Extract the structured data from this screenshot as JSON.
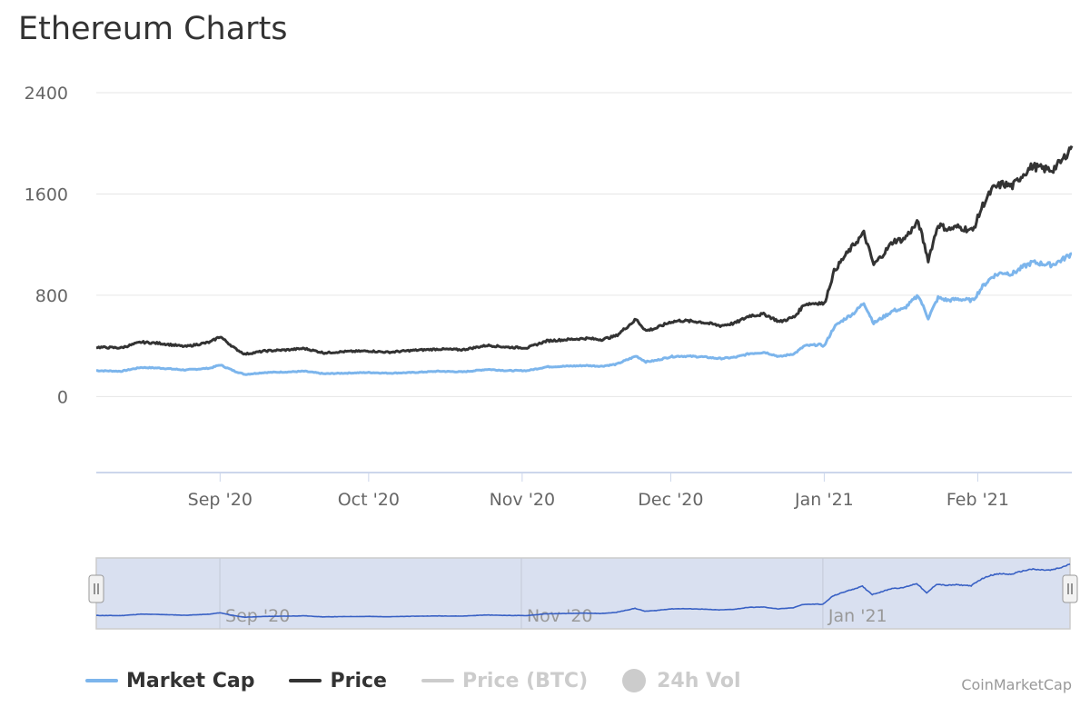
{
  "title": "Ethereum Charts",
  "credit": "CoinMarketCap",
  "legend": [
    {
      "label": "Market Cap",
      "color": "#7cb5ec",
      "active": true,
      "marker": "line"
    },
    {
      "label": "Price",
      "color": "#333333",
      "active": true,
      "marker": "line"
    },
    {
      "label": "Price (BTC)",
      "color": "#cccccc",
      "active": false,
      "marker": "line"
    },
    {
      "label": "24h Vol",
      "color": "#cccccc",
      "active": false,
      "marker": "circle"
    }
  ],
  "chart_data": {
    "type": "line",
    "y_ticks": [
      0,
      800,
      1600,
      2400
    ],
    "ylim": [
      -600,
      2400
    ],
    "x_ticks": [
      {
        "label": "Sep '20",
        "date": "2020-09-01"
      },
      {
        "label": "Oct '20",
        "date": "2020-10-01"
      },
      {
        "label": "Nov '20",
        "date": "2020-11-01"
      },
      {
        "label": "Dec '20",
        "date": "2020-12-01"
      },
      {
        "label": "Jan '21",
        "date": "2021-01-01"
      },
      {
        "label": "Feb '21",
        "date": "2021-02-01"
      }
    ],
    "x_range": [
      "2020-08-07",
      "2021-02-20"
    ],
    "grid": true,
    "legend_position": "bottom-left",
    "series": [
      {
        "name": "Price",
        "color": "#333333",
        "points": [
          [
            "2020-08-07",
            390
          ],
          [
            "2020-08-12",
            385
          ],
          [
            "2020-08-16",
            430
          ],
          [
            "2020-08-20",
            420
          ],
          [
            "2020-08-25",
            395
          ],
          [
            "2020-08-30",
            430
          ],
          [
            "2020-09-01",
            475
          ],
          [
            "2020-09-04",
            380
          ],
          [
            "2020-09-06",
            335
          ],
          [
            "2020-09-10",
            360
          ],
          [
            "2020-09-15",
            370
          ],
          [
            "2020-09-18",
            380
          ],
          [
            "2020-09-22",
            345
          ],
          [
            "2020-09-26",
            355
          ],
          [
            "2020-10-01",
            360
          ],
          [
            "2020-10-05",
            350
          ],
          [
            "2020-10-10",
            365
          ],
          [
            "2020-10-15",
            375
          ],
          [
            "2020-10-20",
            370
          ],
          [
            "2020-10-25",
            405
          ],
          [
            "2020-10-29",
            390
          ],
          [
            "2020-11-02",
            385
          ],
          [
            "2020-11-06",
            440
          ],
          [
            "2020-11-10",
            450
          ],
          [
            "2020-11-14",
            460
          ],
          [
            "2020-11-17",
            450
          ],
          [
            "2020-11-20",
            480
          ],
          [
            "2020-11-24",
            610
          ],
          [
            "2020-11-26",
            520
          ],
          [
            "2020-11-28",
            540
          ],
          [
            "2020-12-01",
            590
          ],
          [
            "2020-12-03",
            600
          ],
          [
            "2020-12-07",
            590
          ],
          [
            "2020-12-11",
            560
          ],
          [
            "2020-12-14",
            580
          ],
          [
            "2020-12-17",
            640
          ],
          [
            "2020-12-20",
            650
          ],
          [
            "2020-12-23",
            590
          ],
          [
            "2020-12-26",
            630
          ],
          [
            "2020-12-28",
            730
          ],
          [
            "2020-12-31",
            740
          ],
          [
            "2021-01-01",
            730
          ],
          [
            "2021-01-03",
            990
          ],
          [
            "2021-01-05",
            1100
          ],
          [
            "2021-01-07",
            1200
          ],
          [
            "2021-01-09",
            1290
          ],
          [
            "2021-01-11",
            1040
          ],
          [
            "2021-01-13",
            1130
          ],
          [
            "2021-01-15",
            1230
          ],
          [
            "2021-01-17",
            1240
          ],
          [
            "2021-01-20",
            1380
          ],
          [
            "2021-01-22",
            1080
          ],
          [
            "2021-01-24",
            1360
          ],
          [
            "2021-01-26",
            1320
          ],
          [
            "2021-01-28",
            1340
          ],
          [
            "2021-01-31",
            1310
          ],
          [
            "2021-02-02",
            1510
          ],
          [
            "2021-02-04",
            1640
          ],
          [
            "2021-02-06",
            1680
          ],
          [
            "2021-02-08",
            1660
          ],
          [
            "2021-02-10",
            1750
          ],
          [
            "2021-02-12",
            1820
          ],
          [
            "2021-02-14",
            1800
          ],
          [
            "2021-02-16",
            1790
          ],
          [
            "2021-02-18",
            1860
          ],
          [
            "2021-02-20",
            1980
          ]
        ]
      },
      {
        "name": "Market Cap",
        "color": "#7cb5ec",
        "points": [
          [
            "2020-08-07",
            205
          ],
          [
            "2020-08-12",
            200
          ],
          [
            "2020-08-16",
            230
          ],
          [
            "2020-08-20",
            225
          ],
          [
            "2020-08-25",
            210
          ],
          [
            "2020-08-30",
            225
          ],
          [
            "2020-09-01",
            250
          ],
          [
            "2020-09-04",
            200
          ],
          [
            "2020-09-06",
            175
          ],
          [
            "2020-09-10",
            190
          ],
          [
            "2020-09-15",
            195
          ],
          [
            "2020-09-18",
            200
          ],
          [
            "2020-09-22",
            180
          ],
          [
            "2020-09-26",
            185
          ],
          [
            "2020-10-01",
            190
          ],
          [
            "2020-10-05",
            185
          ],
          [
            "2020-10-10",
            190
          ],
          [
            "2020-10-15",
            200
          ],
          [
            "2020-10-20",
            195
          ],
          [
            "2020-10-25",
            215
          ],
          [
            "2020-10-29",
            205
          ],
          [
            "2020-11-02",
            205
          ],
          [
            "2020-11-06",
            235
          ],
          [
            "2020-11-10",
            240
          ],
          [
            "2020-11-14",
            245
          ],
          [
            "2020-11-17",
            240
          ],
          [
            "2020-11-20",
            255
          ],
          [
            "2020-11-24",
            320
          ],
          [
            "2020-11-26",
            275
          ],
          [
            "2020-11-28",
            285
          ],
          [
            "2020-12-01",
            315
          ],
          [
            "2020-12-03",
            320
          ],
          [
            "2020-12-07",
            315
          ],
          [
            "2020-12-11",
            300
          ],
          [
            "2020-12-14",
            310
          ],
          [
            "2020-12-17",
            340
          ],
          [
            "2020-12-20",
            350
          ],
          [
            "2020-12-23",
            315
          ],
          [
            "2020-12-26",
            340
          ],
          [
            "2020-12-28",
            400
          ],
          [
            "2020-12-31",
            410
          ],
          [
            "2021-01-01",
            400
          ],
          [
            "2021-01-03",
            550
          ],
          [
            "2021-01-05",
            610
          ],
          [
            "2021-01-07",
            660
          ],
          [
            "2021-01-09",
            740
          ],
          [
            "2021-01-11",
            580
          ],
          [
            "2021-01-13",
            630
          ],
          [
            "2021-01-15",
            680
          ],
          [
            "2021-01-17",
            690
          ],
          [
            "2021-01-20",
            800
          ],
          [
            "2021-01-22",
            620
          ],
          [
            "2021-01-24",
            780
          ],
          [
            "2021-01-26",
            760
          ],
          [
            "2021-01-28",
            770
          ],
          [
            "2021-01-31",
            760
          ],
          [
            "2021-02-02",
            870
          ],
          [
            "2021-02-04",
            950
          ],
          [
            "2021-02-06",
            980
          ],
          [
            "2021-02-08",
            970
          ],
          [
            "2021-02-10",
            1020
          ],
          [
            "2021-02-12",
            1060
          ],
          [
            "2021-02-14",
            1050
          ],
          [
            "2021-02-16",
            1040
          ],
          [
            "2021-02-18",
            1080
          ],
          [
            "2021-02-20",
            1130
          ]
        ]
      }
    ],
    "navigator": {
      "x_ticks": [
        {
          "label": "Sep '20",
          "date": "2020-09-01"
        },
        {
          "label": "Nov '20",
          "date": "2020-11-01"
        },
        {
          "label": "Jan '21",
          "date": "2021-01-01"
        }
      ],
      "series": "Price"
    }
  }
}
